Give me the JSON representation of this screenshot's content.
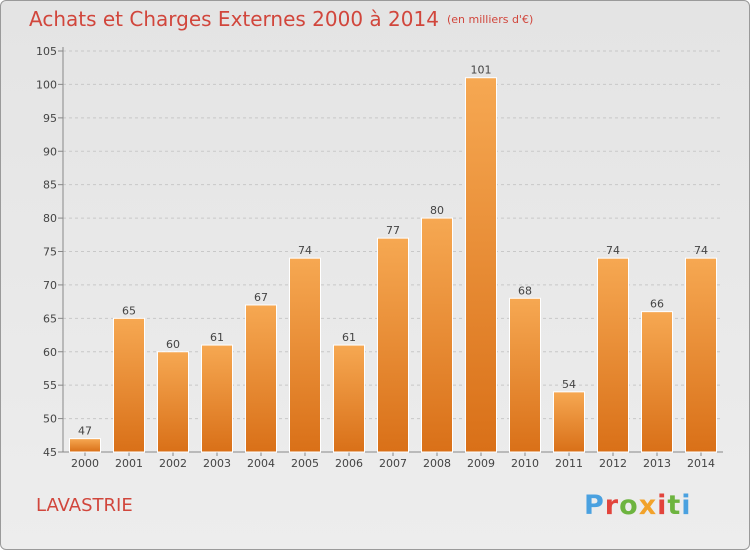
{
  "header": {
    "title": "Achats et Charges Externes 2000 à 2014",
    "unit": "(en milliers d'€)"
  },
  "location": "LAVASTRIE",
  "brand": {
    "name": "Proxiti",
    "letters": [
      "P",
      "r",
      "o",
      "x",
      "i",
      "t",
      "i"
    ],
    "colors": [
      "#4aa1e0",
      "#e2443c",
      "#6db43f",
      "#f2a22a",
      "#e2443c",
      "#6db43f",
      "#4aa1e0"
    ]
  },
  "chart_data": {
    "type": "bar",
    "categories": [
      "2000",
      "2001",
      "2002",
      "2003",
      "2004",
      "2005",
      "2006",
      "2007",
      "2008",
      "2009",
      "2010",
      "2011",
      "2012",
      "2013",
      "2014"
    ],
    "values": [
      47,
      65,
      60,
      61,
      67,
      74,
      61,
      77,
      80,
      101,
      68,
      54,
      74,
      66,
      74
    ],
    "ylim": [
      45,
      105
    ],
    "yticks": [
      45,
      50,
      55,
      60,
      65,
      70,
      75,
      80,
      85,
      90,
      95,
      100,
      105
    ],
    "bar_color": "#f29a3f",
    "grid": true,
    "data_labels": true
  }
}
